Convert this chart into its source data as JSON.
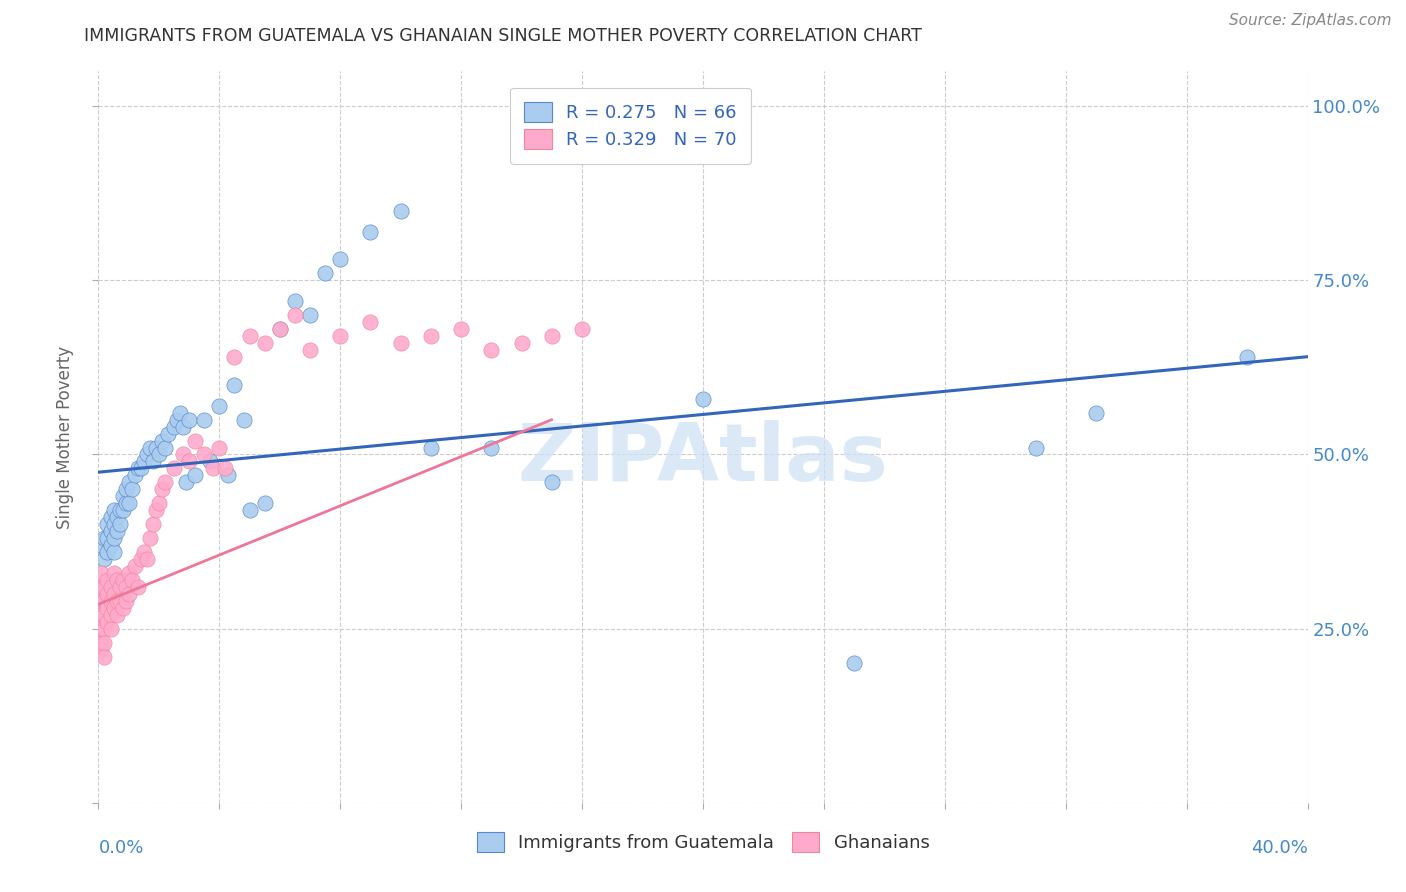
{
  "title": "IMMIGRANTS FROM GUATEMALA VS GHANAIAN SINGLE MOTHER POVERTY CORRELATION CHART",
  "source": "Source: ZipAtlas.com",
  "ylabel": "Single Mother Poverty",
  "xlim": [
    0.0,
    0.4
  ],
  "ylim": [
    0.0,
    1.05
  ],
  "blue_scatter_color": "#aaccee",
  "blue_edge_color": "#5588cc",
  "pink_scatter_color": "#ffaacc",
  "pink_edge_color": "#ee8899",
  "blue_line_color": "#3366bb",
  "pink_line_color": "#ee7799",
  "watermark": "ZIPAtlas",
  "watermark_color": "#cce0f5",
  "grid_color": "#cccccc",
  "title_color": "#333333",
  "source_color": "#888888",
  "ylabel_color": "#666666",
  "right_tick_color": "#4488cc",
  "scatter_blue_x": [
    0.001,
    0.002,
    0.002,
    0.003,
    0.003,
    0.003,
    0.004,
    0.004,
    0.004,
    0.005,
    0.005,
    0.005,
    0.005,
    0.006,
    0.006,
    0.007,
    0.007,
    0.008,
    0.008,
    0.009,
    0.009,
    0.01,
    0.01,
    0.011,
    0.012,
    0.013,
    0.014,
    0.015,
    0.016,
    0.017,
    0.018,
    0.019,
    0.02,
    0.021,
    0.022,
    0.023,
    0.025,
    0.026,
    0.027,
    0.028,
    0.029,
    0.03,
    0.032,
    0.035,
    0.037,
    0.04,
    0.043,
    0.045,
    0.048,
    0.05,
    0.055,
    0.06,
    0.065,
    0.07,
    0.075,
    0.08,
    0.09,
    0.1,
    0.11,
    0.13,
    0.15,
    0.2,
    0.25,
    0.31,
    0.33,
    0.38
  ],
  "scatter_blue_y": [
    0.37,
    0.35,
    0.38,
    0.36,
    0.38,
    0.4,
    0.37,
    0.39,
    0.41,
    0.36,
    0.38,
    0.4,
    0.42,
    0.39,
    0.41,
    0.4,
    0.42,
    0.42,
    0.44,
    0.43,
    0.45,
    0.43,
    0.46,
    0.45,
    0.47,
    0.48,
    0.48,
    0.49,
    0.5,
    0.51,
    0.49,
    0.51,
    0.5,
    0.52,
    0.51,
    0.53,
    0.54,
    0.55,
    0.56,
    0.54,
    0.46,
    0.55,
    0.47,
    0.55,
    0.49,
    0.57,
    0.47,
    0.6,
    0.55,
    0.42,
    0.43,
    0.68,
    0.72,
    0.7,
    0.76,
    0.78,
    0.82,
    0.85,
    0.51,
    0.51,
    0.46,
    0.58,
    0.2,
    0.51,
    0.56,
    0.64
  ],
  "scatter_pink_x": [
    0.001,
    0.001,
    0.001,
    0.001,
    0.001,
    0.001,
    0.001,
    0.002,
    0.002,
    0.002,
    0.002,
    0.002,
    0.002,
    0.003,
    0.003,
    0.003,
    0.003,
    0.004,
    0.004,
    0.004,
    0.004,
    0.005,
    0.005,
    0.005,
    0.006,
    0.006,
    0.006,
    0.007,
    0.007,
    0.008,
    0.008,
    0.009,
    0.009,
    0.01,
    0.01,
    0.011,
    0.012,
    0.013,
    0.014,
    0.015,
    0.016,
    0.017,
    0.018,
    0.019,
    0.02,
    0.021,
    0.022,
    0.025,
    0.028,
    0.03,
    0.032,
    0.035,
    0.038,
    0.04,
    0.042,
    0.045,
    0.05,
    0.055,
    0.06,
    0.065,
    0.07,
    0.08,
    0.09,
    0.1,
    0.11,
    0.12,
    0.13,
    0.14,
    0.15,
    0.16
  ],
  "scatter_pink_y": [
    0.33,
    0.31,
    0.29,
    0.27,
    0.25,
    0.23,
    0.22,
    0.31,
    0.29,
    0.27,
    0.25,
    0.23,
    0.21,
    0.32,
    0.3,
    0.28,
    0.26,
    0.31,
    0.29,
    0.27,
    0.25,
    0.33,
    0.3,
    0.28,
    0.32,
    0.29,
    0.27,
    0.31,
    0.29,
    0.32,
    0.28,
    0.31,
    0.29,
    0.33,
    0.3,
    0.32,
    0.34,
    0.31,
    0.35,
    0.36,
    0.35,
    0.38,
    0.4,
    0.42,
    0.43,
    0.45,
    0.46,
    0.48,
    0.5,
    0.49,
    0.52,
    0.5,
    0.48,
    0.51,
    0.48,
    0.64,
    0.67,
    0.66,
    0.68,
    0.7,
    0.65,
    0.67,
    0.69,
    0.66,
    0.67,
    0.68,
    0.65,
    0.66,
    0.67,
    0.68
  ]
}
